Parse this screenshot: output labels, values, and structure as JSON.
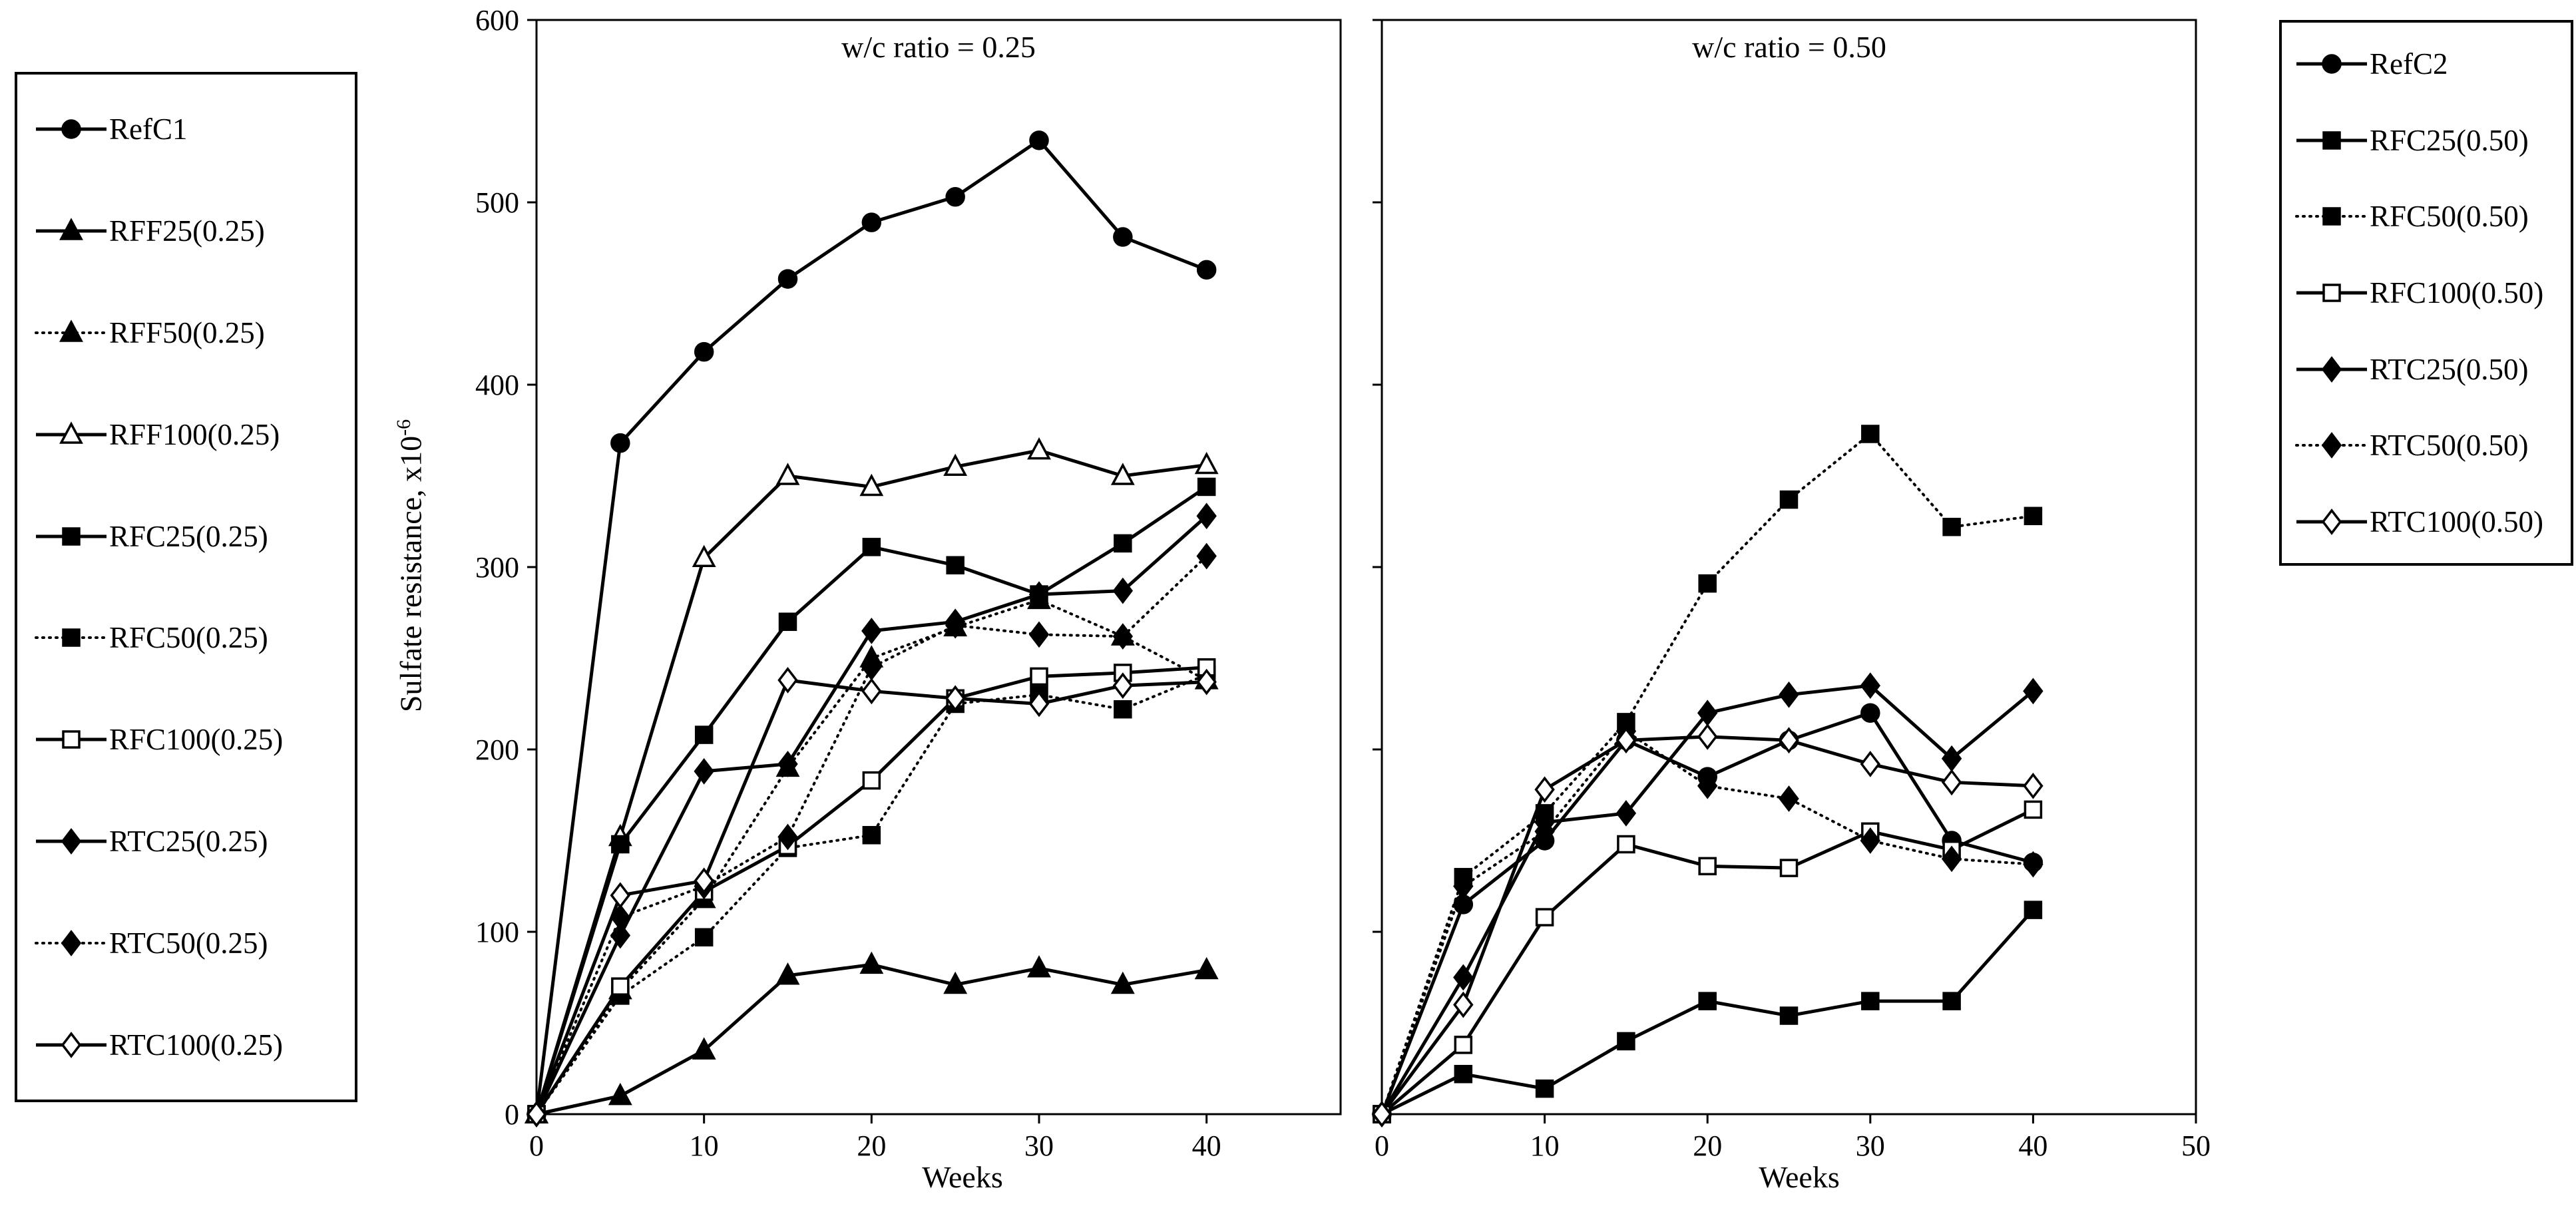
{
  "figure": {
    "background": "#ffffff",
    "ink_color": "#000000",
    "ylabel_base": "Sulfate resistance, x10",
    "ylabel_exp": "-6"
  },
  "chart_data": [
    {
      "type": "line",
      "title": "w/c ratio = 0.25",
      "xlabel": "Weeks",
      "ylabel": "Sulfate resistance, x10^-6",
      "x": [
        0,
        5,
        10,
        15,
        20,
        25,
        30,
        35,
        40
      ],
      "xlim": [
        0,
        48
      ],
      "ylim": [
        0,
        600
      ],
      "xticks": [
        0,
        10,
        20,
        30,
        40
      ],
      "yticks": [
        0,
        100,
        200,
        300,
        400,
        500,
        600
      ],
      "grid": false,
      "legend_position": "left",
      "series": [
        {
          "name": "RefC1",
          "marker": "circle",
          "fill": "filled",
          "line": "solid",
          "values": [
            0,
            368,
            418,
            458,
            489,
            503,
            534,
            481,
            463
          ]
        },
        {
          "name": "RFF25(0.25)",
          "marker": "triangle",
          "fill": "filled",
          "line": "solid",
          "values": [
            0,
            10,
            35,
            76,
            82,
            71,
            80,
            71,
            79
          ]
        },
        {
          "name": "RFF50(0.25)",
          "marker": "triangle",
          "fill": "filled",
          "line": "dotted",
          "values": [
            0,
            68,
            118,
            190,
            250,
            267,
            282,
            262,
            238
          ]
        },
        {
          "name": "RFF100(0.25)",
          "marker": "triangle",
          "fill": "open",
          "line": "solid",
          "values": [
            0,
            152,
            305,
            350,
            344,
            355,
            364,
            350,
            356
          ]
        },
        {
          "name": "RFC25(0.25)",
          "marker": "square",
          "fill": "filled",
          "line": "solid",
          "values": [
            0,
            148,
            208,
            270,
            311,
            301,
            285,
            313,
            344
          ]
        },
        {
          "name": "RFC50(0.25)",
          "marker": "square",
          "fill": "filled",
          "line": "dotted",
          "values": [
            0,
            65,
            97,
            146,
            153,
            225,
            230,
            222,
            241
          ]
        },
        {
          "name": "RFC100(0.25)",
          "marker": "square",
          "fill": "open",
          "line": "solid",
          "values": [
            0,
            70,
            122,
            147,
            183,
            228,
            240,
            242,
            245
          ]
        },
        {
          "name": "RTC25(0.25)",
          "marker": "diamond",
          "fill": "filled",
          "line": "solid",
          "values": [
            0,
            98,
            188,
            192,
            265,
            270,
            285,
            287,
            328
          ]
        },
        {
          "name": "RTC50(0.25)",
          "marker": "diamond",
          "fill": "filled",
          "line": "dotted",
          "values": [
            0,
            108,
            125,
            152,
            245,
            268,
            263,
            262,
            306
          ]
        },
        {
          "name": "RTC100(0.25)",
          "marker": "diamond",
          "fill": "open",
          "line": "solid",
          "values": [
            0,
            120,
            128,
            238,
            232,
            228,
            225,
            235,
            237
          ]
        }
      ]
    },
    {
      "type": "line",
      "title": "w/c ratio = 0.50",
      "xlabel": "Weeks",
      "ylabel": "Sulfate resistance, x10^-6",
      "x": [
        0,
        5,
        10,
        15,
        20,
        25,
        30,
        35,
        40
      ],
      "xlim": [
        0,
        50
      ],
      "ylim": [
        0,
        600
      ],
      "xticks": [
        0,
        10,
        20,
        30,
        40,
        50
      ],
      "yticks": [
        0,
        100,
        200,
        300,
        400,
        500,
        600
      ],
      "grid": false,
      "legend_position": "right",
      "series": [
        {
          "name": "RefC2",
          "marker": "circle",
          "fill": "filled",
          "line": "solid",
          "values": [
            0,
            115,
            150,
            205,
            185,
            205,
            220,
            150,
            138
          ]
        },
        {
          "name": "RFC25(0.50)",
          "marker": "square",
          "fill": "filled",
          "line": "solid",
          "values": [
            0,
            22,
            14,
            40,
            62,
            54,
            62,
            62,
            112
          ]
        },
        {
          "name": "RFC50(0.50)",
          "marker": "square",
          "fill": "filled",
          "line": "dotted",
          "values": [
            0,
            130,
            165,
            215,
            291,
            337,
            373,
            322,
            328
          ]
        },
        {
          "name": "RFC100(0.50)",
          "marker": "square",
          "fill": "open",
          "line": "solid",
          "values": [
            0,
            38,
            108,
            148,
            136,
            135,
            155,
            145,
            167
          ]
        },
        {
          "name": "RTC25(0.50)",
          "marker": "diamond",
          "fill": "filled",
          "line": "solid",
          "values": [
            0,
            75,
            160,
            165,
            220,
            230,
            235,
            195,
            232
          ]
        },
        {
          "name": "RTC50(0.50)",
          "marker": "diamond",
          "fill": "filled",
          "line": "dotted",
          "values": [
            0,
            125,
            155,
            210,
            180,
            173,
            150,
            140,
            137
          ]
        },
        {
          "name": "RTC100(0.50)",
          "marker": "diamond",
          "fill": "open",
          "line": "solid",
          "values": [
            0,
            60,
            178,
            205,
            207,
            205,
            192,
            182,
            180
          ]
        }
      ]
    }
  ]
}
